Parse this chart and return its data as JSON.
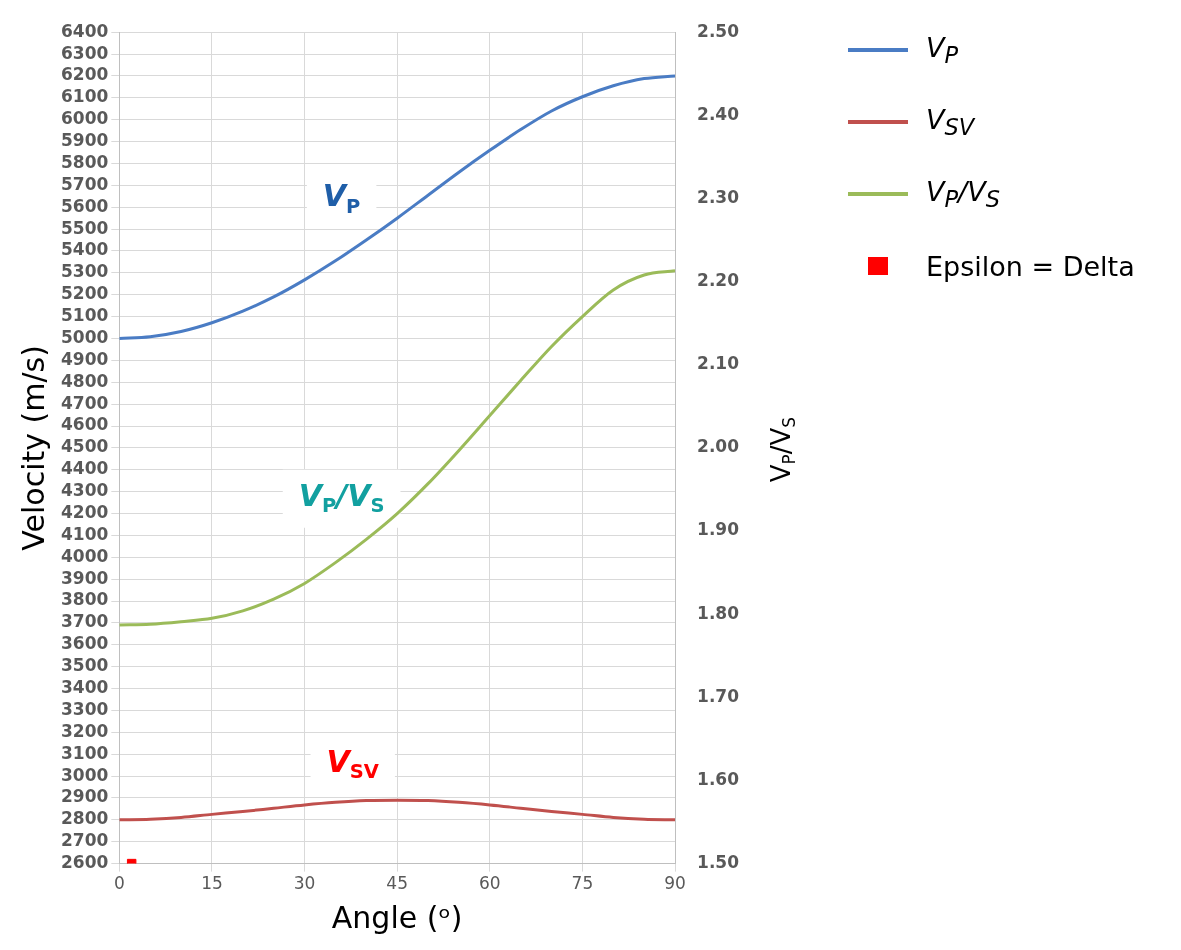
{
  "chart_data": {
    "type": "line",
    "xlabel": "Angle (ᵒ)",
    "ylabel": "Velocity (m/s)",
    "y2label": "V$_{P}$/V$_{S}$",
    "x": [
      0,
      5,
      10,
      15,
      20,
      25,
      30,
      35,
      40,
      45,
      50,
      55,
      60,
      65,
      70,
      75,
      80,
      85,
      90
    ],
    "series": [
      {
        "name": "V$_{P}$",
        "color": "#4a7cc4",
        "values": [
          5000,
          5008,
          5032,
          5072,
          5125,
          5190,
          5268,
          5355,
          5450,
          5550,
          5655,
          5760,
          5860,
          5955,
          6040,
          6105,
          6155,
          6188,
          6200
        ]
      },
      {
        "name": "V$_{SV}$",
        "color": "#c0504d",
        "values": [
          2800,
          2803,
          2811,
          2825,
          2838,
          2853,
          2868,
          2880,
          2888,
          2890,
          2888,
          2880,
          2868,
          2853,
          2838,
          2825,
          2811,
          2803,
          2800
        ]
      },
      {
        "name": "V$_{P}$/V$_{S}$",
        "color": "#9bbb59",
        "axis": "y2",
        "values": [
          1.787,
          1.788,
          1.791,
          1.795,
          1.804,
          1.818,
          1.837,
          1.862,
          1.89,
          1.921,
          1.957,
          1.997,
          2.039,
          2.081,
          2.122,
          2.158,
          2.19,
          2.208,
          2.213
        ]
      },
      {
        "name": "Epsilon = Delta",
        "type": "scatter",
        "marker": "square",
        "color": "#ff0000",
        "x": [
          2
        ],
        "values": [
          2600
        ]
      }
    ],
    "xlim": [
      0,
      90
    ],
    "xticks": [
      0,
      15,
      30,
      45,
      60,
      75,
      90
    ],
    "ylim": [
      2600,
      6400
    ],
    "yticks": [
      2600,
      2700,
      2800,
      2900,
      3000,
      3100,
      3200,
      3300,
      3400,
      3500,
      3600,
      3700,
      3800,
      3900,
      4000,
      4100,
      4200,
      4300,
      4400,
      4500,
      4600,
      4700,
      4800,
      4900,
      5000,
      5100,
      5200,
      5300,
      5400,
      5500,
      5600,
      5700,
      5800,
      5900,
      6000,
      6100,
      6200,
      6300,
      6400
    ],
    "y2lim": [
      1.5,
      2.5
    ],
    "y2ticks": [
      {
        "value": 1.5,
        "label": "1.50"
      },
      {
        "value": 1.6,
        "label": "1.60"
      },
      {
        "value": 1.7,
        "label": "1.70"
      },
      {
        "value": 1.8,
        "label": "1.80"
      },
      {
        "value": 1.9,
        "label": "1.90"
      },
      {
        "value": 2.0,
        "label": "2.00"
      },
      {
        "value": 2.1,
        "label": "2.10"
      },
      {
        "value": 2.2,
        "label": "2.20"
      },
      {
        "value": 2.3,
        "label": "2.30"
      },
      {
        "value": 2.4,
        "label": "2.40"
      },
      {
        "value": 2.5,
        "label": "2.50"
      }
    ],
    "annotations": [
      "V$_{P}$",
      "V$_{P}$/V$_{S}$",
      "V$_{SV}$"
    ],
    "grid": true,
    "legend": "top right",
    "marker": "none",
    "line_style": "solid"
  }
}
